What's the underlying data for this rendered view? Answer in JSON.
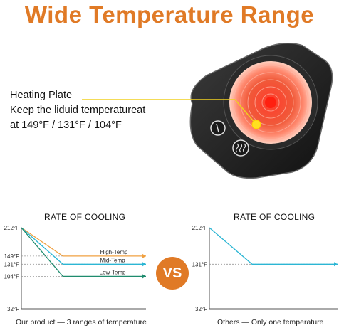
{
  "headline": "Wide Temperature Range",
  "callout": {
    "title": "Heating Plate",
    "line1": "Keep the liduid temperatureat",
    "line2": "at 149°F / 131°F / 104°F"
  },
  "vs_label": "VS",
  "colors": {
    "accent": "#e07a26",
    "high": "#f0a040",
    "mid": "#2cb6d4",
    "low": "#1f8c6e",
    "callout_line": "#f0d020"
  },
  "icons": [
    "power-icon",
    "heat-waves-icon"
  ],
  "chart_data": [
    {
      "type": "line",
      "title": "RATE OF COOLING",
      "caption": "Our product — 3 ranges of temperature",
      "y_ticks": [
        212,
        149,
        131,
        104,
        32
      ],
      "y_tick_labels": [
        "212°F",
        "149°F",
        "131°F",
        "104°F",
        "32°F"
      ],
      "ylim": [
        32,
        212
      ],
      "series": [
        {
          "name": "High-Temp",
          "values": [
            212,
            149,
            149
          ]
        },
        {
          "name": "Mid-Temp",
          "values": [
            212,
            131,
            131
          ]
        },
        {
          "name": "Low-Temp",
          "values": [
            212,
            104,
            104
          ]
        }
      ],
      "x": [
        0,
        1,
        3
      ]
    },
    {
      "type": "line",
      "title": "RATE OF COOLING",
      "caption": "Others — Only one temperature",
      "y_ticks": [
        212,
        131,
        32
      ],
      "y_tick_labels": [
        "212°F",
        "131°F",
        "32°F"
      ],
      "ylim": [
        32,
        212
      ],
      "series": [
        {
          "values": [
            212,
            131,
            131
          ]
        }
      ],
      "x": [
        0,
        1,
        3
      ]
    }
  ]
}
